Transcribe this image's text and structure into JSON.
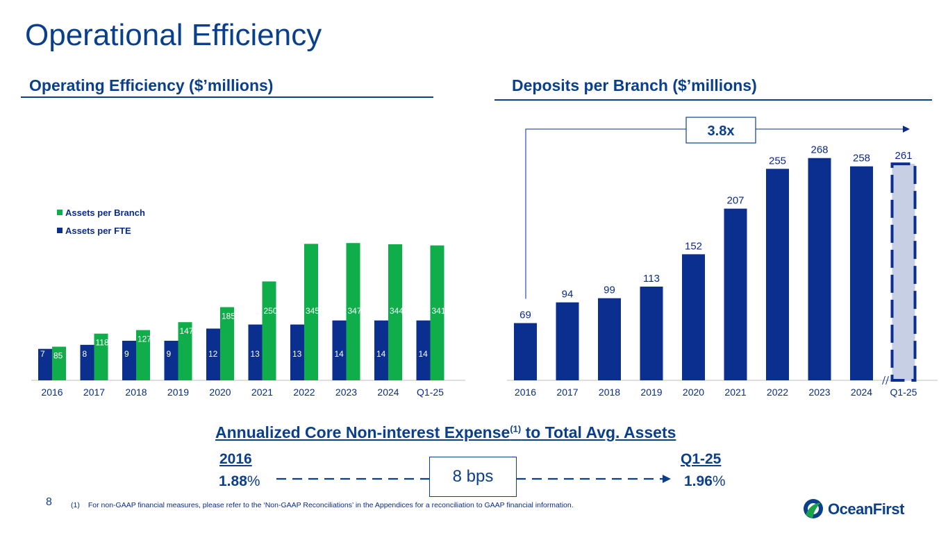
{
  "page_title": "Operational Efficiency",
  "page_number": "8",
  "left_section_title": "Operating Efficiency ($’millions)",
  "right_section_title": "Deposits per Branch ($’millions)",
  "growth_callout": "3.8x",
  "expense": {
    "heading_main": "Annualized Core Non-interest Expense",
    "heading_sup": "(1)",
    "heading_tail": " to Total Avg. Assets",
    "start_label": "2016",
    "start_value": "1.88",
    "end_label": "Q1-25",
    "end_value": "1.96",
    "unit": "%",
    "change": "8 bps"
  },
  "footnote_marker": "(1)",
  "footnote": "For non-GAAP financial measures, please refer to the ‘Non-GAAP Reconciliations’ in the Appendices for a reconciliation to GAAP financial information.",
  "logo_text": "OceanFirst",
  "colors": {
    "navy": "#0a2f8f",
    "green": "#0fae4b",
    "light_blue": "#c6cfe4",
    "text": "#0a3f8c"
  },
  "chart_data": [
    {
      "type": "bar",
      "title": "Operating Efficiency ($’millions)",
      "categories": [
        "2016",
        "2017",
        "2018",
        "2019",
        "2020",
        "2021",
        "2022",
        "2023",
        "2024",
        "Q1-25"
      ],
      "series": [
        {
          "name": "Assets per FTE",
          "values": [
            7,
            8,
            9,
            9,
            12,
            13,
            13,
            14,
            14,
            14
          ]
        },
        {
          "name": "Assets per Branch",
          "values": [
            85,
            118,
            127,
            147,
            185,
            250,
            345,
            347,
            344,
            341
          ]
        }
      ],
      "legend": [
        "Assets per Branch",
        "Assets per FTE"
      ],
      "legend_position": "top-left",
      "xlabel": "",
      "ylabel": ""
    },
    {
      "type": "bar",
      "title": "Deposits per Branch ($’millions)",
      "categories": [
        "2016",
        "2017",
        "2018",
        "2019",
        "2020",
        "2021",
        "2022",
        "2023",
        "2024",
        "Q1-25"
      ],
      "values": [
        69,
        94,
        99,
        113,
        152,
        207,
        255,
        268,
        258,
        261
      ],
      "highlight": "Q1-25",
      "annotation": "3.8x",
      "xlabel": "",
      "ylabel": ""
    }
  ]
}
